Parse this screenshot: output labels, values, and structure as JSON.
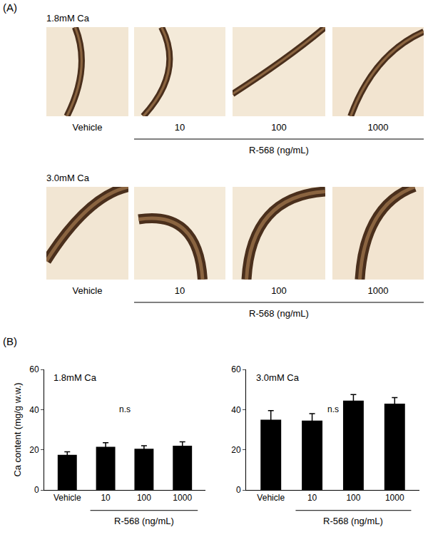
{
  "panels": {
    "a": "(A)",
    "b": "(B)"
  },
  "micrographs": [
    {
      "condition": "1.8mM Ca",
      "labels": [
        "Vehicle",
        "10",
        "100",
        "1000"
      ],
      "group_label": "R-568 (ng/mL)"
    },
    {
      "condition": "3.0mM Ca",
      "labels": [
        "Vehicle",
        "10",
        "100",
        "1000"
      ],
      "group_label": "R-568 (ng/mL)"
    }
  ],
  "chart_data": [
    {
      "type": "bar",
      "title": "1.8mM Ca",
      "ylabel": "Ca content (mg/g w.w.)",
      "categories": [
        "Vehicle",
        "10",
        "100",
        "1000"
      ],
      "group_label": "R-568 (ng/mL)",
      "values": [
        17.5,
        21.5,
        20.5,
        22
      ],
      "errors": [
        1.5,
        2,
        1.5,
        2
      ],
      "color": "#000000",
      "ylim": [
        0,
        60
      ],
      "yticks": [
        0,
        20,
        40,
        60
      ],
      "grid": false,
      "annotations": [
        "n.s"
      ]
    },
    {
      "type": "bar",
      "title": "3.0mM Ca",
      "categories": [
        "Vehicle",
        "10",
        "100",
        "1000"
      ],
      "group_label": "R-568 (ng/mL)",
      "values": [
        35,
        34.5,
        44.5,
        43
      ],
      "errors": [
        4.5,
        3.5,
        3,
        3
      ],
      "color": "#000000",
      "ylim": [
        0,
        60
      ],
      "yticks": [
        0,
        20,
        40,
        60
      ],
      "grid": false,
      "annotations": [
        "n.s"
      ]
    }
  ]
}
